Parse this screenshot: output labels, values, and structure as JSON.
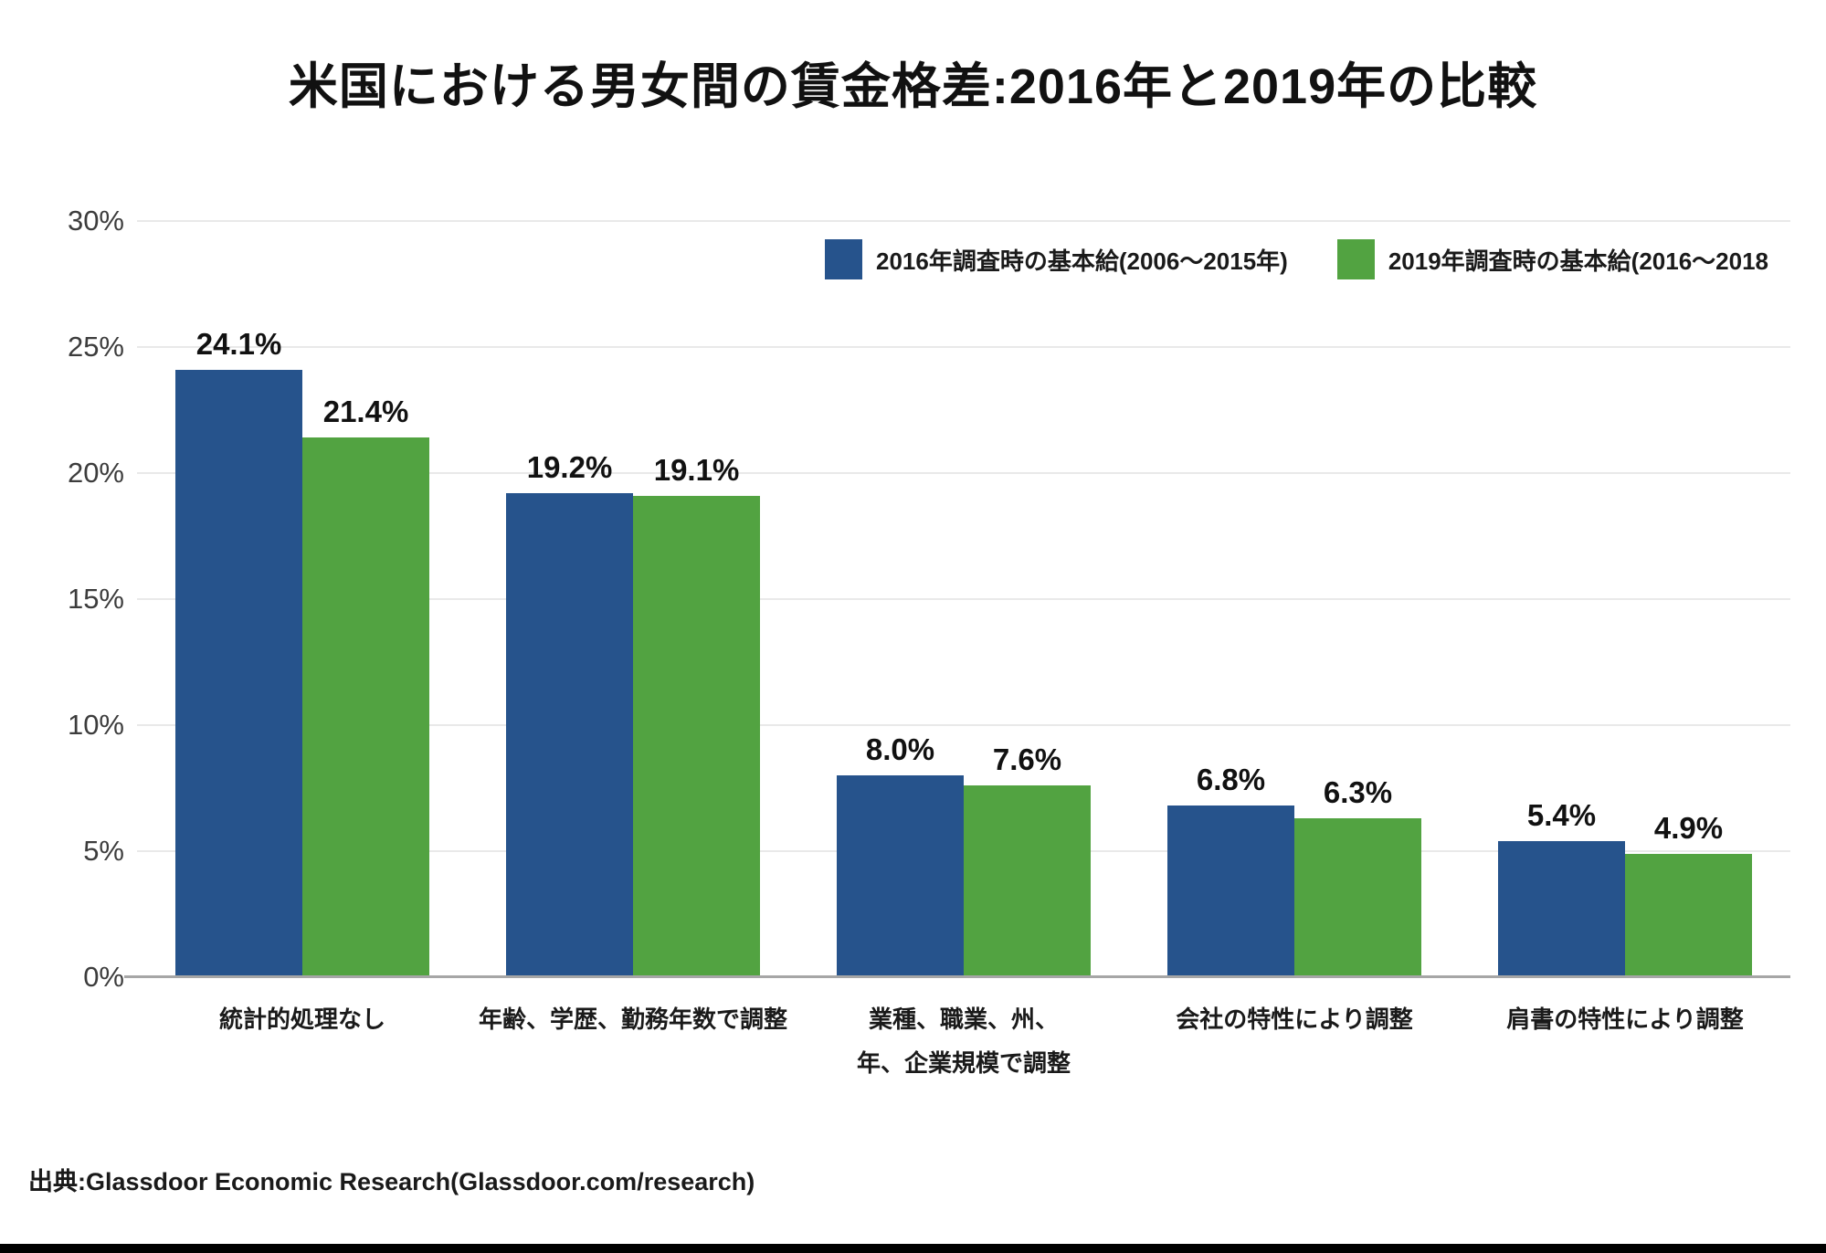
{
  "title": "米国における男女間の賃金格差:2016年と2019年の比較",
  "source": "出典:Glassdoor Economic Research(Glassdoor.com/research)",
  "colors": {
    "series_2016": "#26538c",
    "series_2019": "#52a341",
    "gridline": "#e9e9e9",
    "axis_line": "#a6a6a6"
  },
  "chart_data": {
    "type": "bar",
    "title": "米国における男女間の賃金格差:2016年と2019年の比較",
    "categories": [
      "統計的処理なし",
      "年齢、学歴、勤務年数で調整",
      "業種、職業、州、\n年、企業規模で調整",
      "会社の特性により調整",
      "肩書の特性により調整"
    ],
    "series": [
      {
        "name": "2016年調査時の基本給(2006〜2015年)",
        "color": "#26538c",
        "values": [
          24.1,
          19.2,
          8.0,
          6.8,
          5.4
        ]
      },
      {
        "name": "2019年調査時の基本給(2016〜2018",
        "color": "#52a341",
        "values": [
          21.4,
          19.1,
          7.6,
          6.3,
          4.9
        ]
      }
    ],
    "value_label_suffix": "%",
    "xlabel": "",
    "ylabel": "",
    "ylim": [
      0,
      30
    ],
    "ytick_step": 5,
    "ytick_labels": [
      "0%",
      "5%",
      "10%",
      "15%",
      "20%",
      "25%",
      "30%"
    ],
    "grid": true,
    "legend_position": "top-right"
  }
}
